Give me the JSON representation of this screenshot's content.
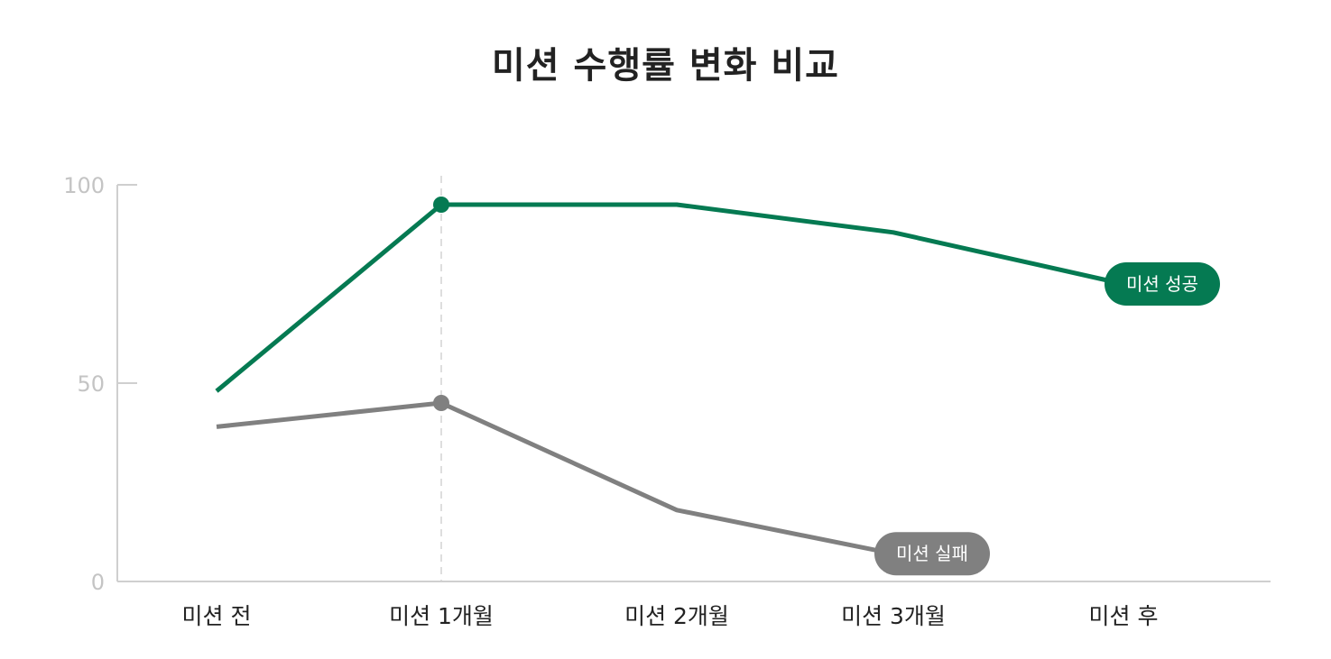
{
  "chart_data": {
    "type": "line",
    "title": "미션 수행률 변화 비교",
    "xlabel": "",
    "ylabel": "",
    "categories": [
      "미션 전",
      "미션 1개월",
      "미션 2개월",
      "미션 3개월",
      "미션 후"
    ],
    "yticks": [
      0,
      50,
      100
    ],
    "ylim": [
      0,
      100
    ],
    "grid": false,
    "highlight_category_index": 1,
    "series": [
      {
        "name": "미션 성공",
        "color": "#057a52",
        "values": [
          48,
          95,
          95,
          88,
          75
        ]
      },
      {
        "name": "미션 실패",
        "color": "#808080",
        "values": [
          39,
          45,
          18,
          7,
          null
        ]
      }
    ]
  }
}
